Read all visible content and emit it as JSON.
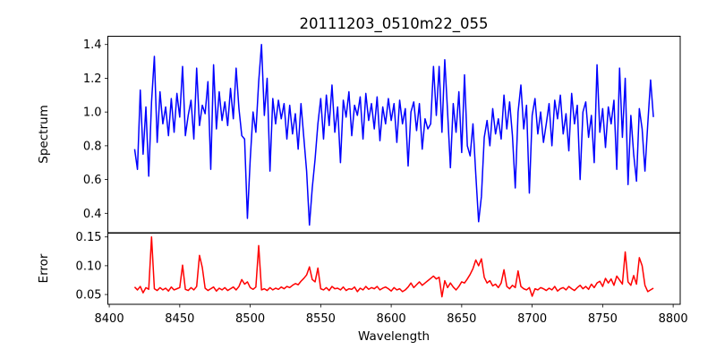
{
  "chart_data": [
    {
      "type": "line",
      "title": "20111203_0510m22_055",
      "xlabel": "",
      "ylabel": "Spectrum",
      "xlim": [
        8399,
        8805
      ],
      "ylim": [
        0.285,
        1.449
      ],
      "xticks": [
        8400,
        8450,
        8500,
        8550,
        8600,
        8650,
        8700,
        8750,
        8800
      ],
      "yticks": [
        "0.4",
        "0.6",
        "0.8",
        "1.0",
        "1.2",
        "1.4"
      ],
      "grid": false,
      "color": "#0000ff",
      "x_start": 8418,
      "x_step": 2,
      "y": [
        0.78,
        0.66,
        1.13,
        0.75,
        1.03,
        0.62,
        1.06,
        1.33,
        0.82,
        1.12,
        0.93,
        1.03,
        0.86,
        1.08,
        0.88,
        1.11,
        0.97,
        1.27,
        0.86,
        0.98,
        1.07,
        0.84,
        1.26,
        0.92,
        1.04,
        0.99,
        1.18,
        0.66,
        1.28,
        0.9,
        1.12,
        0.95,
        1.06,
        0.92,
        1.14,
        0.96,
        1.26,
        1.02,
        0.86,
        0.84,
        0.37,
        0.72,
        1.0,
        0.88,
        1.18,
        1.4,
        0.98,
        1.2,
        0.65,
        1.08,
        0.93,
        1.07,
        0.96,
        1.05,
        0.84,
        1.04,
        0.87,
        0.99,
        0.78,
        1.05,
        0.85,
        0.65,
        0.33,
        0.55,
        0.72,
        0.93,
        1.08,
        0.84,
        1.1,
        0.92,
        1.16,
        0.88,
        1.03,
        0.7,
        1.07,
        0.97,
        1.12,
        0.86,
        1.04,
        0.98,
        1.09,
        0.84,
        1.11,
        0.95,
        1.05,
        0.9,
        1.09,
        0.83,
        1.03,
        0.93,
        1.08,
        0.95,
        1.05,
        0.82,
        1.07,
        0.93,
        1.02,
        0.68,
        1.0,
        1.06,
        0.89,
        1.05,
        0.78,
        0.96,
        0.9,
        0.93,
        1.27,
        0.98,
        1.27,
        0.88,
        1.31,
        1.0,
        0.67,
        1.05,
        0.88,
        1.12,
        0.76,
        1.22,
        0.8,
        0.74,
        0.93,
        0.63,
        0.35,
        0.5,
        0.85,
        0.95,
        0.8,
        1.02,
        0.87,
        0.96,
        0.84,
        1.1,
        0.9,
        1.06,
        0.86,
        0.55,
        1.0,
        1.16,
        0.9,
        1.04,
        0.52,
        0.98,
        1.08,
        0.87,
        1.0,
        0.82,
        0.93,
        1.05,
        0.8,
        1.07,
        0.96,
        1.1,
        0.87,
        0.99,
        0.77,
        1.11,
        0.93,
        1.04,
        0.6,
        1.0,
        1.06,
        0.85,
        0.98,
        0.7,
        1.28,
        0.88,
        1.02,
        0.79,
        1.03,
        0.93,
        1.07,
        0.66,
        1.26,
        0.85,
        1.2,
        0.57,
        0.98,
        0.75,
        0.59,
        1.02,
        0.9,
        0.65,
        0.93,
        1.19,
        0.97
      ]
    },
    {
      "type": "line",
      "title": "",
      "xlabel": "Wavelength",
      "ylabel": "Error",
      "xlim": [
        8399,
        8805
      ],
      "ylim": [
        0.033,
        0.1566
      ],
      "xticks": [
        "8400",
        "8450",
        "8500",
        "8550",
        "8600",
        "8650",
        "8700",
        "8750",
        "8800"
      ],
      "yticks": [
        "0.05",
        "0.10",
        "0.15"
      ],
      "grid": false,
      "color": "#ff0000",
      "x_start": 8418,
      "x_step": 2,
      "y": [
        0.063,
        0.058,
        0.064,
        0.053,
        0.062,
        0.059,
        0.15,
        0.06,
        0.057,
        0.062,
        0.058,
        0.061,
        0.056,
        0.063,
        0.058,
        0.06,
        0.062,
        0.101,
        0.059,
        0.057,
        0.062,
        0.058,
        0.064,
        0.118,
        0.097,
        0.061,
        0.057,
        0.06,
        0.063,
        0.056,
        0.061,
        0.058,
        0.062,
        0.057,
        0.06,
        0.063,
        0.058,
        0.064,
        0.076,
        0.068,
        0.072,
        0.062,
        0.059,
        0.063,
        0.135,
        0.058,
        0.06,
        0.057,
        0.062,
        0.058,
        0.061,
        0.059,
        0.063,
        0.06,
        0.064,
        0.062,
        0.066,
        0.069,
        0.067,
        0.073,
        0.078,
        0.084,
        0.098,
        0.076,
        0.072,
        0.096,
        0.06,
        0.058,
        0.062,
        0.057,
        0.064,
        0.06,
        0.061,
        0.058,
        0.063,
        0.057,
        0.06,
        0.059,
        0.063,
        0.055,
        0.061,
        0.058,
        0.064,
        0.059,
        0.062,
        0.06,
        0.064,
        0.058,
        0.061,
        0.063,
        0.06,
        0.056,
        0.062,
        0.058,
        0.06,
        0.055,
        0.058,
        0.063,
        0.07,
        0.062,
        0.067,
        0.072,
        0.066,
        0.07,
        0.074,
        0.078,
        0.082,
        0.077,
        0.08,
        0.046,
        0.074,
        0.062,
        0.07,
        0.063,
        0.058,
        0.064,
        0.072,
        0.07,
        0.077,
        0.085,
        0.095,
        0.11,
        0.1,
        0.112,
        0.08,
        0.07,
        0.074,
        0.065,
        0.068,
        0.062,
        0.07,
        0.093,
        0.064,
        0.06,
        0.066,
        0.062,
        0.091,
        0.064,
        0.06,
        0.058,
        0.062,
        0.047,
        0.06,
        0.058,
        0.062,
        0.06,
        0.057,
        0.061,
        0.058,
        0.064,
        0.056,
        0.06,
        0.062,
        0.058,
        0.064,
        0.06,
        0.057,
        0.062,
        0.066,
        0.06,
        0.064,
        0.059,
        0.068,
        0.062,
        0.07,
        0.073,
        0.064,
        0.078,
        0.07,
        0.077,
        0.066,
        0.082,
        0.075,
        0.068,
        0.124,
        0.072,
        0.066,
        0.083,
        0.068,
        0.114,
        0.1,
        0.066,
        0.055,
        0.058,
        0.061
      ]
    }
  ]
}
